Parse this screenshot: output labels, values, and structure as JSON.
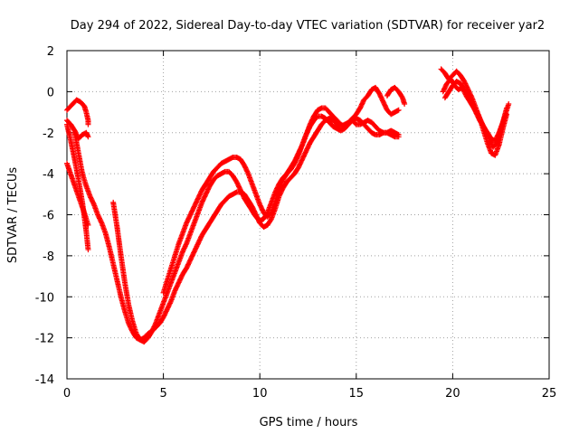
{
  "chart_data": {
    "type": "scatter",
    "title": "Day 294 of 2022, Sidereal Day-to-day VTEC variation (SDTVAR) for receiver yar2",
    "xlabel": "GPS time / hours",
    "ylabel": "SDTVAR / TECUs",
    "xlim": [
      0,
      25
    ],
    "ylim": [
      -14,
      2
    ],
    "xticks": [
      "0",
      "5",
      "10",
      "15",
      "20",
      "25"
    ],
    "yticks": [
      "-14",
      "-12",
      "-10",
      "-8",
      "-6",
      "-4",
      "-2",
      "0",
      "2"
    ],
    "grid": true,
    "marker": "+",
    "color": "#ff0000",
    "series": [
      {
        "x": [
          0.0,
          0.3,
          0.5,
          0.7,
          0.9,
          1.0,
          1.1,
          1.1
        ],
        "y": [
          -0.9,
          -0.6,
          -0.4,
          -0.5,
          -0.7,
          -1.0,
          -1.4,
          -1.6
        ]
      },
      {
        "x": [
          0.0,
          0.2,
          0.4,
          0.6,
          0.8,
          1.0,
          1.1
        ],
        "y": [
          -1.4,
          -1.6,
          -1.9,
          -2.3,
          -2.1,
          -2.0,
          -2.2
        ]
      },
      {
        "x": [
          0.0,
          0.2,
          0.4,
          0.6,
          0.8,
          1.0,
          1.1
        ],
        "y": [
          -1.6,
          -2.4,
          -3.3,
          -4.3,
          -5.4,
          -6.8,
          -7.7
        ]
      },
      {
        "x": [
          0.0,
          0.3,
          0.6,
          0.9,
          1.1
        ],
        "y": [
          -3.5,
          -4.3,
          -5.1,
          -5.9,
          -6.5
        ]
      },
      {
        "x": [
          0.4,
          0.6,
          0.8,
          1.0,
          1.2,
          1.4,
          1.6,
          1.8,
          2.0,
          2.2,
          2.4,
          2.6,
          2.8,
          3.0,
          3.2,
          3.4,
          3.6,
          3.8,
          4.0,
          4.2,
          4.5,
          4.8,
          5.0,
          5.2,
          5.4,
          5.6,
          5.8,
          6.0,
          6.2,
          6.4,
          6.6,
          6.8,
          7.0,
          7.2,
          7.4,
          7.6,
          7.8,
          8.0,
          8.2,
          8.4,
          8.6,
          8.8,
          9.0,
          9.2,
          9.4,
          9.6,
          9.8,
          10.0,
          10.2,
          10.4,
          10.6,
          10.8,
          11.0,
          11.2,
          11.4,
          11.6,
          11.8,
          12.0,
          12.2,
          12.4,
          12.6,
          12.8,
          13.0,
          13.2,
          13.4,
          13.6,
          13.8,
          14.0,
          14.2,
          14.4,
          14.6,
          14.8,
          15.0,
          15.2,
          15.4,
          15.6,
          15.8,
          16.0,
          16.2,
          16.4,
          16.6,
          16.8,
          17.0,
          17.2
        ],
        "y": [
          -2.0,
          -3.0,
          -4.0,
          -4.6,
          -5.1,
          -5.5,
          -6.0,
          -6.4,
          -6.9,
          -7.6,
          -8.4,
          -9.2,
          -10.0,
          -10.7,
          -11.3,
          -11.7,
          -12.0,
          -12.1,
          -12.0,
          -11.8,
          -11.6,
          -11.3,
          -11.0,
          -10.6,
          -10.2,
          -9.7,
          -9.3,
          -8.9,
          -8.6,
          -8.2,
          -7.8,
          -7.4,
          -7.0,
          -6.7,
          -6.4,
          -6.1,
          -5.8,
          -5.5,
          -5.3,
          -5.1,
          -5.0,
          -4.9,
          -4.9,
          -5.0,
          -5.3,
          -5.6,
          -6.0,
          -6.4,
          -6.6,
          -6.5,
          -6.2,
          -5.7,
          -5.1,
          -4.7,
          -4.4,
          -4.2,
          -4.0,
          -3.7,
          -3.3,
          -2.9,
          -2.5,
          -2.2,
          -1.9,
          -1.6,
          -1.4,
          -1.3,
          -1.4,
          -1.6,
          -1.7,
          -1.6,
          -1.5,
          -1.4,
          -1.6,
          -1.6,
          -1.5,
          -1.4,
          -1.5,
          -1.7,
          -1.9,
          -2.0,
          -2.0,
          -1.9,
          -2.0,
          -2.1
        ]
      },
      {
        "x": [
          2.4,
          2.6,
          2.8,
          3.0,
          3.2,
          3.4,
          3.6,
          3.8,
          4.0,
          4.2,
          4.4,
          4.6,
          4.8,
          5.0,
          5.2,
          5.4,
          5.6,
          5.8,
          6.0,
          6.2,
          6.4,
          6.6,
          6.8,
          7.0,
          7.2,
          7.4,
          7.6,
          7.8,
          8.0,
          8.2,
          8.4,
          8.6,
          8.8,
          9.0,
          9.2,
          9.4,
          9.6,
          9.8,
          10.0,
          10.2,
          10.4,
          10.6,
          10.8,
          11.0,
          11.2,
          11.4,
          11.6,
          11.8,
          12.0,
          12.2,
          12.4,
          12.6,
          12.8,
          13.0,
          13.2,
          13.4,
          13.6,
          13.8,
          14.0,
          14.2,
          14.4,
          14.6,
          14.8,
          15.0,
          15.2,
          15.4,
          15.6,
          15.8,
          16.0,
          16.2,
          16.4,
          16.6,
          16.8,
          17.0,
          17.2
        ],
        "y": [
          -5.4,
          -6.6,
          -8.0,
          -9.3,
          -10.4,
          -11.2,
          -11.8,
          -12.1,
          -12.2,
          -12.0,
          -11.7,
          -11.3,
          -10.8,
          -10.3,
          -9.8,
          -9.3,
          -8.8,
          -8.3,
          -7.8,
          -7.4,
          -6.9,
          -6.4,
          -5.9,
          -5.4,
          -5.0,
          -4.6,
          -4.3,
          -4.1,
          -4.0,
          -3.9,
          -3.9,
          -4.1,
          -4.4,
          -4.8,
          -5.2,
          -5.5,
          -5.8,
          -6.1,
          -6.3,
          -6.2,
          -5.9,
          -5.4,
          -4.9,
          -4.5,
          -4.2,
          -4.0,
          -3.8,
          -3.5,
          -3.1,
          -2.6,
          -2.1,
          -1.7,
          -1.4,
          -1.2,
          -1.2,
          -1.3,
          -1.5,
          -1.7,
          -1.8,
          -1.9,
          -1.8,
          -1.6,
          -1.4,
          -1.3,
          -1.4,
          -1.6,
          -1.8,
          -2.0,
          -2.1,
          -2.1,
          -2.0,
          -2.0,
          -2.1,
          -2.2,
          -2.2
        ]
      },
      {
        "x": [
          5.0,
          5.2,
          5.4,
          5.6,
          5.8,
          6.0,
          6.2,
          6.4,
          6.6,
          6.8,
          7.0,
          7.2,
          7.4,
          7.6,
          7.8,
          8.0,
          8.2,
          8.4,
          8.6,
          8.8,
          9.0,
          9.2,
          9.4,
          9.6,
          9.8,
          10.0,
          10.2,
          10.4,
          10.6,
          10.8,
          11.0,
          11.2,
          11.4,
          11.6,
          11.8,
          12.0,
          12.2,
          12.4,
          12.6,
          12.8,
          13.0,
          13.2,
          13.4,
          13.6,
          13.8,
          14.0,
          14.2,
          14.4,
          14.6,
          14.8,
          15.0,
          15.2,
          15.4,
          15.6,
          15.8,
          16.0,
          16.2,
          16.4,
          16.6,
          16.8,
          17.0,
          17.2
        ],
        "y": [
          -9.8,
          -9.2,
          -8.6,
          -8.0,
          -7.4,
          -6.9,
          -6.4,
          -6.0,
          -5.6,
          -5.2,
          -4.8,
          -4.5,
          -4.2,
          -3.9,
          -3.7,
          -3.5,
          -3.4,
          -3.3,
          -3.2,
          -3.2,
          -3.3,
          -3.6,
          -4.0,
          -4.5,
          -5.0,
          -5.5,
          -5.9,
          -6.1,
          -5.9,
          -5.4,
          -4.8,
          -4.3,
          -4.0,
          -3.7,
          -3.4,
          -3.0,
          -2.6,
          -2.1,
          -1.6,
          -1.2,
          -0.9,
          -0.8,
          -0.8,
          -1.0,
          -1.2,
          -1.4,
          -1.6,
          -1.7,
          -1.5,
          -1.3,
          -1.1,
          -0.8,
          -0.4,
          -0.2,
          0.1,
          0.2,
          -0.1,
          -0.5,
          -0.9,
          -1.1,
          -1.0,
          -0.9
        ]
      },
      {
        "x": [
          16.6,
          16.8,
          17.0,
          17.2,
          17.4,
          17.5
        ],
        "y": [
          -0.2,
          0.1,
          0.2,
          0.0,
          -0.3,
          -0.6
        ]
      },
      {
        "x": [
          19.4,
          19.6,
          19.8,
          20.0,
          20.2,
          20.4,
          20.6,
          20.8,
          21.0,
          21.2,
          21.4,
          21.6,
          21.8,
          22.0,
          22.2,
          22.4,
          22.6,
          22.8
        ],
        "y": [
          1.1,
          0.9,
          0.6,
          0.8,
          1.0,
          0.8,
          0.5,
          0.1,
          -0.3,
          -0.8,
          -1.3,
          -1.9,
          -2.5,
          -3.0,
          -3.1,
          -2.6,
          -1.8,
          -1.1
        ]
      },
      {
        "x": [
          19.5,
          19.7,
          19.9,
          20.1,
          20.3,
          20.5,
          20.7,
          20.9,
          21.1,
          21.3,
          21.5,
          21.7,
          21.9,
          22.1,
          22.3,
          22.5,
          22.7,
          22.9
        ],
        "y": [
          0.0,
          0.4,
          0.6,
          0.3,
          0.1,
          0.2,
          -0.2,
          -0.5,
          -0.8,
          -1.1,
          -1.5,
          -1.9,
          -2.3,
          -2.7,
          -2.5,
          -1.8,
          -1.2,
          -0.6
        ]
      },
      {
        "x": [
          19.6,
          19.8,
          20.0,
          20.2,
          20.4,
          20.6,
          20.8,
          21.0,
          21.2,
          21.4,
          21.6,
          21.8,
          22.0,
          22.2,
          22.4,
          22.6,
          22.8
        ],
        "y": [
          -0.3,
          0.0,
          0.3,
          0.5,
          0.4,
          0.1,
          -0.2,
          -0.6,
          -1.0,
          -1.4,
          -1.7,
          -2.0,
          -2.3,
          -2.4,
          -2.0,
          -1.5,
          -0.8
        ]
      }
    ]
  }
}
